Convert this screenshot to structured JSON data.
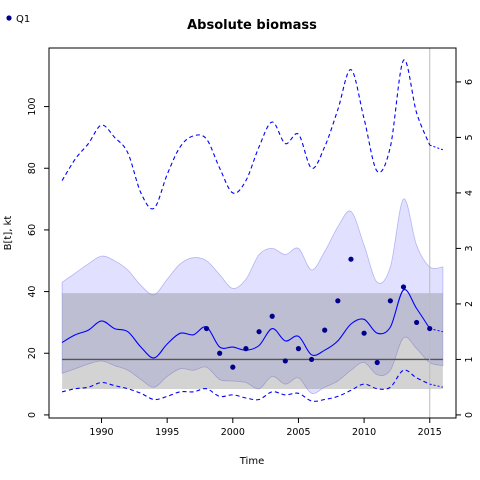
{
  "chart_data": {
    "type": "line",
    "title": "Absolute biomass",
    "xlabel": "Time",
    "ylabel": "B[t], kt",
    "xlim": [
      1986,
      2017
    ],
    "ylim": [
      -1,
      119
    ],
    "x_ticks": [
      1990,
      1995,
      2000,
      2005,
      2010,
      2015
    ],
    "y_ticks": [
      0,
      20,
      40,
      60,
      80,
      100
    ],
    "y2_ticks": [
      0,
      1,
      2,
      3,
      4,
      5,
      6
    ],
    "y2_scale": 18.0,
    "legend": {
      "position": "top-left",
      "entries": [
        {
          "label": "Q1",
          "color": "#00008b"
        }
      ]
    },
    "reference": {
      "bmsy": 18.0,
      "bmsy_band": [
        8.4,
        39.5
      ],
      "x_range": [
        1987,
        2016
      ]
    },
    "vline_x": 2015,
    "x": [
      1987,
      1988,
      1989,
      1990,
      1991,
      1992,
      1993,
      1994,
      1995,
      1996,
      1997,
      1998,
      1999,
      2000,
      2001,
      2002,
      2003,
      2004,
      2005,
      2006,
      2007,
      2008,
      2009,
      2010,
      2011,
      2012,
      2013,
      2014,
      2015
    ],
    "series": [
      {
        "role": "estimate",
        "color": "#0000ff",
        "values": [
          23.5,
          26.0,
          27.5,
          30.5,
          28.0,
          27.0,
          22.0,
          18.5,
          23.0,
          26.5,
          26.0,
          28.5,
          22.0,
          22.0,
          21.0,
          22.5,
          28.0,
          24.0,
          25.5,
          19.5,
          21.0,
          24.0,
          29.5,
          31.0,
          26.5,
          28.5,
          40.5,
          34.5,
          28.0
        ]
      },
      {
        "role": "upper_ci",
        "color": "#0000ff",
        "values": [
          76.0,
          83.0,
          88.0,
          94.0,
          90.0,
          85.0,
          72.0,
          67.0,
          78.0,
          87.0,
          90.5,
          89.5,
          80.0,
          72.0,
          76.0,
          87.0,
          95.0,
          88.0,
          91.0,
          80.0,
          87.0,
          99.0,
          112.0,
          96.0,
          79.0,
          87.0,
          115.0,
          98.0,
          87.5
        ]
      },
      {
        "role": "lower_ci",
        "color": "#0000ff",
        "values": [
          7.5,
          8.5,
          9.0,
          10.5,
          9.5,
          8.5,
          7.0,
          5.0,
          6.0,
          7.5,
          7.5,
          8.5,
          6.0,
          6.5,
          5.5,
          5.0,
          7.5,
          6.5,
          7.0,
          4.5,
          5.0,
          6.0,
          8.0,
          10.0,
          8.5,
          9.0,
          14.5,
          12.0,
          10.0
        ]
      }
    ],
    "forecast": {
      "x": [
        2015,
        2016
      ],
      "estimate": [
        28.0,
        27.0
      ],
      "upper_ci": [
        87.5,
        86.0
      ],
      "lower_ci": [
        10.0,
        9.0
      ]
    },
    "band_upper": {
      "x": [
        1987,
        1988,
        1989,
        1990,
        1991,
        1992,
        1993,
        1994,
        1995,
        1996,
        1997,
        1998,
        1999,
        2000,
        2001,
        2002,
        2003,
        2004,
        2005,
        2006,
        2007,
        2008,
        2009,
        2010,
        2011,
        2012,
        2013,
        2014,
        2015,
        2016
      ],
      "values": [
        43.0,
        46.0,
        49.0,
        51.5,
        50.0,
        47.0,
        42.0,
        39.0,
        44.0,
        49.0,
        51.0,
        50.0,
        45.5,
        41.0,
        44.0,
        52.0,
        54.0,
        52.0,
        54.0,
        47.0,
        53.0,
        61.0,
        66.0,
        55.0,
        43.0,
        48.0,
        70.0,
        55.0,
        48.0,
        48.0
      ]
    },
    "band_lower": {
      "x": [
        1987,
        1988,
        1989,
        1990,
        1991,
        1992,
        1993,
        1994,
        1995,
        1996,
        1997,
        1998,
        1999,
        2000,
        2001,
        2002,
        2003,
        2004,
        2005,
        2006,
        2007,
        2008,
        2009,
        2010,
        2011,
        2012,
        2013,
        2014,
        2015,
        2016
      ],
      "values": [
        13.5,
        15.0,
        16.5,
        17.5,
        16.0,
        14.5,
        11.5,
        9.0,
        12.5,
        15.0,
        14.5,
        15.5,
        11.5,
        11.0,
        10.5,
        8.5,
        12.5,
        10.0,
        12.0,
        7.0,
        9.0,
        11.0,
        14.5,
        17.0,
        13.0,
        14.5,
        25.0,
        21.5,
        17.0,
        16.0
      ]
    },
    "points": {
      "name": "Q1",
      "x": [
        1998,
        1999,
        2000,
        2001,
        2002,
        2003,
        2004,
        2005,
        2006,
        2007,
        2008,
        2009,
        2010,
        2011,
        2012,
        2013,
        2014,
        2015
      ],
      "y": [
        28.0,
        20.0,
        15.5,
        21.5,
        27.0,
        32.0,
        17.5,
        21.5,
        18.0,
        27.5,
        37.0,
        50.5,
        26.5,
        17.0,
        37.0,
        41.5,
        30.0,
        28.0
      ]
    }
  }
}
